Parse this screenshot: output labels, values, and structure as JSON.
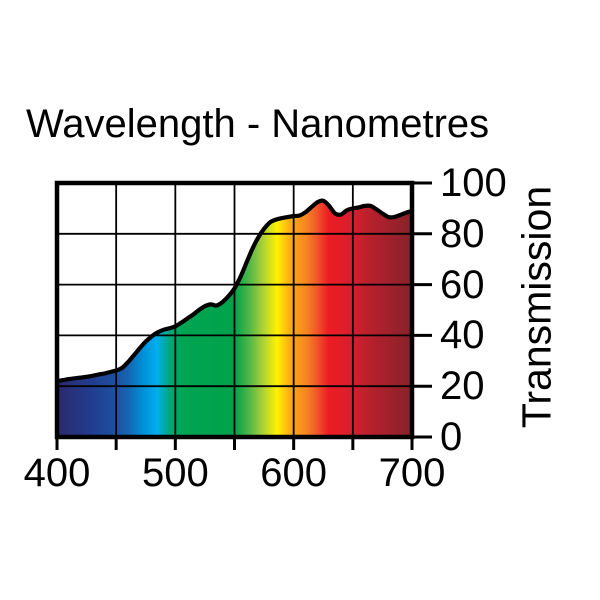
{
  "title": "Wavelength - Nanometres",
  "y_axis_title": "Transmission",
  "chart_data": {
    "type": "area",
    "title": "Wavelength - Nanometres",
    "xlabel": "Wavelength - Nanometres",
    "ylabel": "Transmission",
    "xlim": [
      400,
      700
    ],
    "ylim": [
      0,
      100
    ],
    "grid": true,
    "legend_position": "none",
    "x_ticks": [
      400,
      450,
      500,
      550,
      600,
      650,
      700
    ],
    "x_tick_labels": [
      {
        "value": 400,
        "text": "400"
      },
      {
        "value": 500,
        "text": "500"
      },
      {
        "value": 600,
        "text": "600"
      },
      {
        "value": 700,
        "text": "700"
      }
    ],
    "y_ticks": [
      0,
      20,
      40,
      60,
      80,
      100
    ],
    "y_tick_labels": [
      {
        "value": 100,
        "text": "100"
      },
      {
        "value": 80,
        "text": "80"
      },
      {
        "value": 60,
        "text": "60"
      },
      {
        "value": 40,
        "text": "40"
      },
      {
        "value": 20,
        "text": "20"
      },
      {
        "value": 0,
        "text": "0"
      }
    ],
    "curve_color": "#000000",
    "series": [
      {
        "name": "Transmission (%)",
        "x": [
          400,
          405,
          410,
          415,
          420,
          425,
          430,
          435,
          440,
          445,
          450,
          455,
          460,
          465,
          470,
          475,
          480,
          485,
          490,
          495,
          500,
          505,
          510,
          515,
          520,
          525,
          530,
          535,
          540,
          545,
          550,
          555,
          560,
          565,
          570,
          575,
          580,
          585,
          590,
          595,
          600,
          605,
          610,
          615,
          620,
          625,
          630,
          635,
          640,
          645,
          650,
          655,
          660,
          665,
          670,
          675,
          680,
          685,
          690,
          695,
          700
        ],
        "y": [
          22.0,
          22.4,
          22.8,
          23.1,
          23.4,
          23.7,
          24.1,
          24.6,
          25.0,
          25.6,
          26.2,
          27.2,
          29.5,
          32.2,
          35.0,
          37.6,
          39.6,
          41.2,
          42.2,
          42.8,
          43.6,
          45.0,
          46.6,
          48.2,
          50.0,
          51.5,
          52.2,
          51.8,
          53.2,
          55.5,
          58.5,
          63.0,
          68.5,
          74.0,
          78.5,
          82.0,
          84.5,
          85.6,
          86.2,
          86.6,
          87.0,
          87.2,
          88.5,
          90.5,
          92.4,
          93.0,
          91.0,
          88.0,
          87.6,
          89.3,
          90.0,
          90.4,
          91.0,
          91.0,
          89.6,
          88.0,
          86.6,
          86.6,
          87.4,
          88.3,
          89.0
        ]
      }
    ],
    "spectrum_gradient": [
      {
        "offset": 0.0,
        "color": "#2b2a6a"
      },
      {
        "offset": 0.08,
        "color": "#24388a"
      },
      {
        "offset": 0.155,
        "color": "#1c4d9f"
      },
      {
        "offset": 0.2,
        "color": "#1565b1"
      },
      {
        "offset": 0.245,
        "color": "#0092d8"
      },
      {
        "offset": 0.282,
        "color": "#00aeef"
      },
      {
        "offset": 0.315,
        "color": "#00a87e"
      },
      {
        "offset": 0.356,
        "color": "#00a551"
      },
      {
        "offset": 0.5,
        "color": "#00a14b"
      },
      {
        "offset": 0.545,
        "color": "#57b947"
      },
      {
        "offset": 0.58,
        "color": "#acd136"
      },
      {
        "offset": 0.62,
        "color": "#fff200"
      },
      {
        "offset": 0.655,
        "color": "#fbae17"
      },
      {
        "offset": 0.7,
        "color": "#f6881f"
      },
      {
        "offset": 0.73,
        "color": "#f15b29"
      },
      {
        "offset": 0.765,
        "color": "#ed1c24"
      },
      {
        "offset": 0.83,
        "color": "#d71f2e"
      },
      {
        "offset": 0.88,
        "color": "#b8202c"
      },
      {
        "offset": 1.0,
        "color": "#85222a"
      }
    ]
  }
}
